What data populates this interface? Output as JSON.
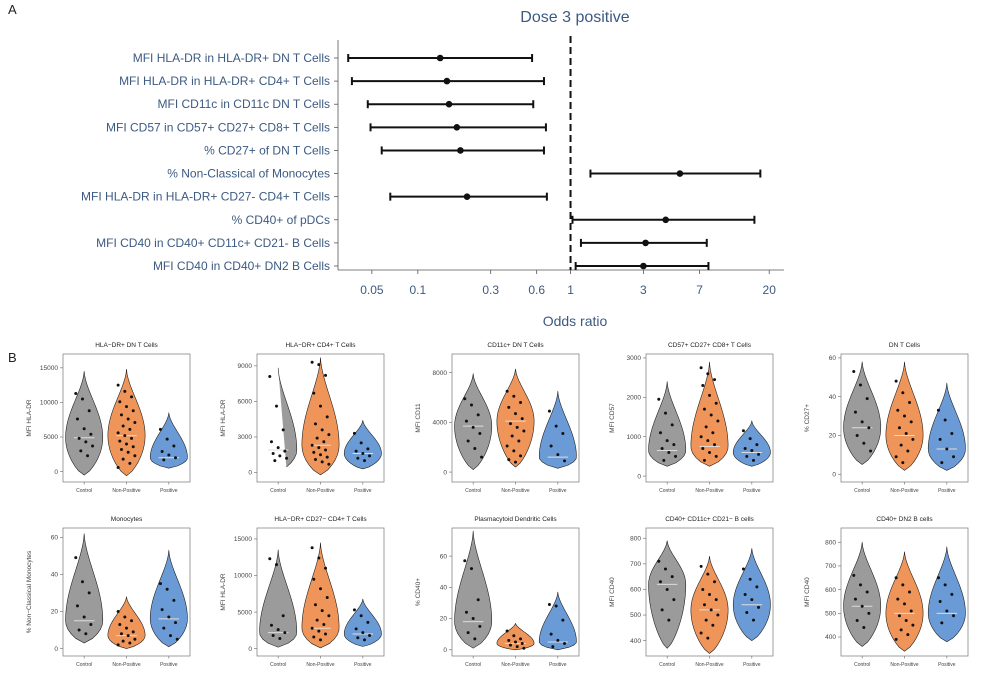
{
  "panel_labels": {
    "a": "A",
    "b": "B"
  },
  "colors": {
    "forest_text": "#3c5a82",
    "violin_control": "#9b9b9b",
    "violin_nonpositive": "#f0955a",
    "violin_positive": "#6b9bd6"
  },
  "chart_data": [
    {
      "type": "forest",
      "title": "Dose 3 positive",
      "xlabel": "Odds ratio",
      "x_scale": "log",
      "xlim": [
        0.03,
        25
      ],
      "x_ticks": [
        0.05,
        0.1,
        0.3,
        0.6,
        1,
        3,
        7,
        20
      ],
      "x_tick_labels": [
        "0.05",
        "0.1",
        "0.3",
        "0.6",
        "1",
        "3",
        "7",
        "20"
      ],
      "reference_line": 1,
      "rows": [
        {
          "label": "MFI HLA-DR in HLA-DR+ DN T Cells",
          "estimate": 0.14,
          "lower": 0.035,
          "upper": 0.56
        },
        {
          "label": "MFI HLA-DR in HLA-DR+ CD4+ T Cells",
          "estimate": 0.155,
          "lower": 0.037,
          "upper": 0.67
        },
        {
          "label": "MFI CD11c in CD11c DN T Cells",
          "estimate": 0.16,
          "lower": 0.047,
          "upper": 0.57
        },
        {
          "label": "MFI CD57 in CD57+ CD27+ CD8+ T Cells",
          "estimate": 0.18,
          "lower": 0.049,
          "upper": 0.69
        },
        {
          "label": "% CD27+ of DN T Cells",
          "estimate": 0.19,
          "lower": 0.058,
          "upper": 0.67
        },
        {
          "label": "% Non-Classical of Monocytes",
          "estimate": 5.2,
          "lower": 1.35,
          "upper": 17.5
        },
        {
          "label": "MFI HLA-DR in HLA-DR+ CD27- CD4+ T Cells",
          "estimate": 0.21,
          "lower": 0.066,
          "upper": 0.7
        },
        {
          "label": "% CD40+ of pDCs",
          "estimate": 4.2,
          "lower": 1.03,
          "upper": 16
        },
        {
          "label": "MFI CD40 in CD40+ CD11c+ CD21- B Cells",
          "estimate": 3.1,
          "lower": 1.17,
          "upper": 7.8
        },
        {
          "label": "MFI CD40 in CD40+ DN2 B Cells",
          "estimate": 3.0,
          "lower": 1.08,
          "upper": 8.0
        }
      ]
    },
    {
      "type": "violin",
      "title": "HLA−DR+ DN T Cells",
      "ylabel": "MFI HLA-DR",
      "categories": [
        "Control",
        "Non-Positive",
        "Positive"
      ],
      "ylim": [
        -1500,
        17000
      ],
      "y_ticks": [
        0,
        5000,
        10000,
        15000
      ],
      "groups": [
        {
          "name": "Control",
          "min": -500,
          "max": 14500,
          "median": 4900,
          "points": [
            11300,
            10500,
            8800,
            7600,
            6200,
            5400,
            4800,
            4300,
            3700,
            3000,
            2300
          ]
        },
        {
          "name": "Non-Positive",
          "min": -600,
          "max": 14800,
          "median": 5200,
          "points": [
            12500,
            11600,
            10800,
            10100,
            9400,
            8800,
            8200,
            7600,
            7100,
            6600,
            6100,
            5600,
            5200,
            4800,
            4400,
            4000,
            3600,
            3200,
            2800,
            2300,
            1800,
            1200,
            600
          ]
        },
        {
          "name": "Positive",
          "min": 500,
          "max": 8500,
          "median": 2000,
          "points": [
            6100,
            4700,
            3700,
            2900,
            2400,
            2000,
            1700
          ]
        }
      ]
    },
    {
      "type": "violin",
      "title": "HLA−DR+ CD4+ T Cells",
      "ylabel": "MFI HLA-DR",
      "categories": [
        "Control",
        "Non-Positive",
        "Positive"
      ],
      "ylim": [
        -800,
        10000
      ],
      "y_ticks": [
        0,
        3000,
        6000,
        9000
      ],
      "groups": [
        {
          "name": "Control",
          "min": 100,
          "max": 8800,
          "median": 1900,
          "points": [
            8100,
            5600,
            3600,
            2600,
            2100,
            1800,
            1600,
            1400,
            1200,
            1000
          ]
        },
        {
          "name": "Non-Positive",
          "min": -200,
          "max": 9700,
          "median": 2300,
          "points": [
            9300,
            9100,
            8200,
            6700,
            5600,
            4700,
            4100,
            3600,
            3200,
            2900,
            2600,
            2300,
            2100,
            1900,
            1700,
            1500,
            1300,
            1100,
            900,
            700
          ]
        },
        {
          "name": "Positive",
          "min": 300,
          "max": 4400,
          "median": 1600,
          "points": [
            3300,
            2500,
            2000,
            1800,
            1600,
            1400,
            1200,
            1000
          ]
        }
      ]
    },
    {
      "type": "violin",
      "title": "CD11c+ DN T Cells",
      "ylabel": "MFI CD11",
      "categories": [
        "Control",
        "Non-Positive",
        "Positive"
      ],
      "ylim": [
        -800,
        9500
      ],
      "y_ticks": [
        0,
        4000,
        8000
      ],
      "groups": [
        {
          "name": "Control",
          "min": 200,
          "max": 7900,
          "median": 3700,
          "points": [
            5900,
            5400,
            4600,
            4100,
            3600,
            3100,
            2500,
            1900,
            1200
          ]
        },
        {
          "name": "Non-Positive",
          "min": 400,
          "max": 8300,
          "median": 4100,
          "points": [
            6500,
            6100,
            5600,
            5200,
            4700,
            4300,
            3900,
            3600,
            3300,
            2900,
            2500,
            2100,
            1700,
            1300,
            1000,
            800
          ]
        },
        {
          "name": "Positive",
          "min": 300,
          "max": 6500,
          "median": 1200,
          "points": [
            4900,
            3700,
            3100,
            2100,
            1400,
            900
          ]
        }
      ]
    },
    {
      "type": "violin",
      "title": "CD57+ CD27+ CD8+ T Cells",
      "ylabel": "MFI CD57",
      "categories": [
        "Control",
        "Non-Positive",
        "Positive"
      ],
      "ylim": [
        -150,
        3100
      ],
      "y_ticks": [
        0,
        1000,
        2000,
        3000
      ],
      "groups": [
        {
          "name": "Control",
          "min": 250,
          "max": 2400,
          "median": 650,
          "points": [
            1950,
            1600,
            1300,
            1100,
            900,
            800,
            700,
            600,
            500,
            400
          ]
        },
        {
          "name": "Non-Positive",
          "min": 250,
          "max": 2900,
          "median": 750,
          "points": [
            2750,
            2600,
            2450,
            2300,
            2050,
            1850,
            1700,
            1550,
            1400,
            1250,
            1100,
            1000,
            900,
            800,
            700,
            600,
            500,
            400
          ]
        },
        {
          "name": "Positive",
          "min": 250,
          "max": 1400,
          "median": 600,
          "points": [
            1150,
            950,
            800,
            700,
            650,
            550,
            500,
            400
          ]
        }
      ]
    },
    {
      "type": "violin",
      "title": "DN T Cells",
      "ylabel": "% CD27+",
      "categories": [
        "Control",
        "Non-Positive",
        "Positive"
      ],
      "ylim": [
        -4,
        62
      ],
      "y_ticks": [
        0,
        20,
        40,
        60
      ],
      "groups": [
        {
          "name": "Control",
          "min": 5,
          "max": 58,
          "median": 24,
          "points": [
            53,
            46,
            39,
            32,
            27,
            24,
            20,
            16,
            12
          ]
        },
        {
          "name": "Non-Positive",
          "min": 2,
          "max": 58,
          "median": 20,
          "points": [
            48,
            42,
            37,
            33,
            30,
            27,
            24,
            21,
            18,
            15,
            12,
            9,
            6
          ]
        },
        {
          "name": "Positive",
          "min": 2,
          "max": 47,
          "median": 13,
          "points": [
            33,
            28,
            21,
            18,
            13,
            9,
            6
          ]
        }
      ]
    },
    {
      "type": "violin",
      "title": "Monocytes",
      "ylabel": "% Non−Classical Monocytes",
      "categories": [
        "Control",
        "Non-Positive",
        "Positive"
      ],
      "ylim": [
        -4,
        65
      ],
      "y_ticks": [
        0,
        20,
        40,
        60
      ],
      "groups": [
        {
          "name": "Control",
          "min": 3,
          "max": 62,
          "median": 15,
          "points": [
            49,
            36,
            30,
            23,
            17,
            13,
            10,
            8
          ]
        },
        {
          "name": "Non-Positive",
          "min": 0,
          "max": 28,
          "median": 7,
          "points": [
            20,
            17,
            15,
            13,
            11,
            9,
            8,
            7,
            5,
            4,
            3,
            2
          ]
        },
        {
          "name": "Positive",
          "min": 1,
          "max": 53,
          "median": 16,
          "points": [
            35,
            32,
            26,
            21,
            17,
            14,
            11,
            7,
            5
          ]
        }
      ]
    },
    {
      "type": "violin",
      "title": "HLA−DR+ CD27− CD4+ T Cells",
      "ylabel": "MFI HLA-DR",
      "categories": [
        "Control",
        "Non-Positive",
        "Positive"
      ],
      "ylim": [
        -1000,
        16500
      ],
      "y_ticks": [
        0,
        5000,
        10000,
        15000
      ],
      "groups": [
        {
          "name": "Control",
          "min": 200,
          "max": 13500,
          "median": 2200,
          "points": [
            12300,
            11500,
            4500,
            3200,
            2600,
            2200,
            1800,
            1400
          ]
        },
        {
          "name": "Non-Positive",
          "min": 100,
          "max": 14500,
          "median": 2800,
          "points": [
            13800,
            12400,
            11000,
            9500,
            8200,
            7000,
            6000,
            5200,
            4500,
            3900,
            3300,
            2800,
            2400,
            2000,
            1600,
            1200
          ]
        },
        {
          "name": "Positive",
          "min": 300,
          "max": 6800,
          "median": 2000,
          "points": [
            5300,
            4500,
            3600,
            2700,
            2200,
            1800,
            1500,
            1200
          ]
        }
      ]
    },
    {
      "type": "violin",
      "title": "Plasmacytoid Dendritic Cells",
      "ylabel": "% CD40+",
      "categories": [
        "Control",
        "Non-Positive",
        "Positive"
      ],
      "ylim": [
        -4,
        78
      ],
      "y_ticks": [
        0,
        20,
        40,
        60
      ],
      "groups": [
        {
          "name": "Control",
          "min": 1,
          "max": 76,
          "median": 18,
          "points": [
            57,
            52,
            32,
            24,
            20,
            15,
            11,
            7
          ]
        },
        {
          "name": "Non-Positive",
          "min": 0,
          "max": 17,
          "median": 4,
          "points": [
            12,
            9,
            7,
            6,
            5,
            4,
            3,
            2,
            1
          ]
        },
        {
          "name": "Positive",
          "min": 0,
          "max": 37,
          "median": 5,
          "points": [
            29,
            28,
            19,
            10,
            6,
            4,
            2
          ]
        }
      ]
    },
    {
      "type": "violin",
      "title": "CD40+ CD11c+ CD21− B cells",
      "ylabel": "MFI CD40",
      "categories": [
        "Control",
        "Non-Positive",
        "Positive"
      ],
      "ylim": [
        340,
        840
      ],
      "y_ticks": [
        400,
        500,
        600,
        700,
        800
      ],
      "groups": [
        {
          "name": "Control",
          "min": 370,
          "max": 790,
          "median": 620,
          "points": [
            710,
            680,
            650,
            630,
            600,
            560,
            520,
            480
          ]
        },
        {
          "name": "Non-Positive",
          "min": 350,
          "max": 730,
          "median": 520,
          "points": [
            690,
            660,
            630,
            600,
            580,
            560,
            540,
            520,
            500,
            480,
            460,
            430,
            410
          ]
        },
        {
          "name": "Positive",
          "min": 400,
          "max": 760,
          "median": 540,
          "points": [
            680,
            640,
            610,
            580,
            560,
            530,
            510,
            480
          ]
        }
      ]
    },
    {
      "type": "violin",
      "title": "CD40+ DN2 B cells",
      "ylabel": "MFI CD40",
      "categories": [
        "Control",
        "Non-Positive",
        "Positive"
      ],
      "ylim": [
        320,
        860
      ],
      "y_ticks": [
        400,
        500,
        600,
        700,
        800
      ],
      "groups": [
        {
          "name": "Control",
          "min": 360,
          "max": 800,
          "median": 530,
          "points": [
            660,
            620,
            590,
            560,
            530,
            500,
            470,
            440
          ]
        },
        {
          "name": "Non-Positive",
          "min": 340,
          "max": 760,
          "median": 500,
          "points": [
            650,
            620,
            590,
            560,
            540,
            510,
            490,
            470,
            450,
            430,
            410,
            390
          ]
        },
        {
          "name": "Positive",
          "min": 380,
          "max": 780,
          "median": 500,
          "points": [
            650,
            620,
            580,
            550,
            510,
            490,
            460
          ]
        }
      ]
    }
  ]
}
